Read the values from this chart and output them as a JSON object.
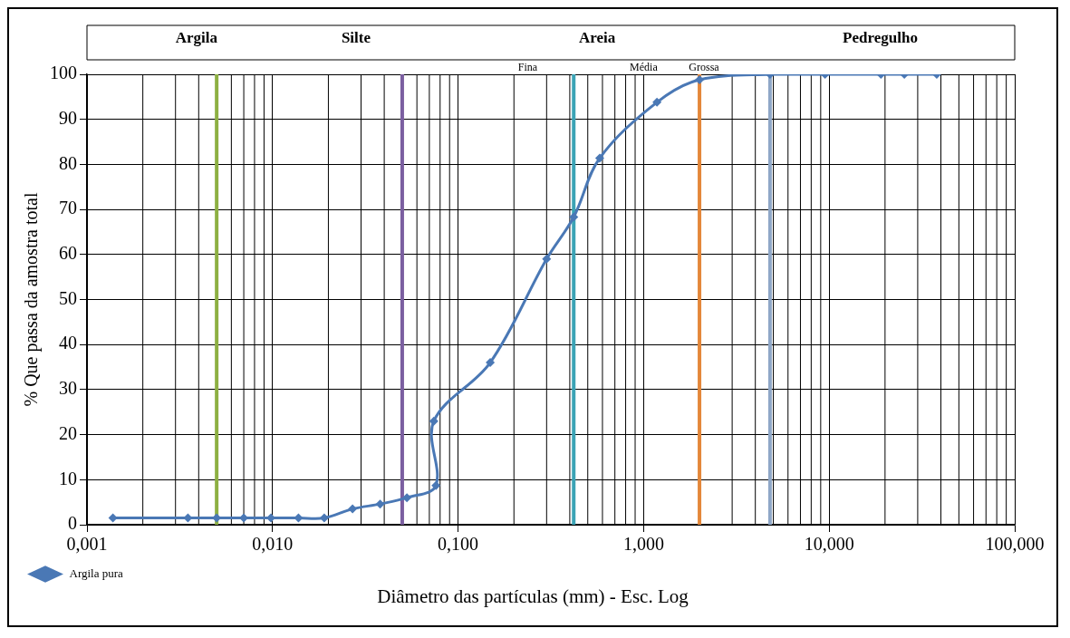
{
  "chart_data": {
    "type": "line",
    "xlabel": "Diâmetro das partículas (mm) - Esc. Log",
    "ylabel": "% Que passa da amostra total",
    "annotations": [
      "Argila",
      "Silte",
      "Areia",
      "Pedregulho",
      "Fina",
      "Média",
      "Grossa"
    ],
    "series": [
      {
        "name": "Argila pura",
        "color": "#4a78b5",
        "x": [
          0.00138,
          0.0035,
          0.005,
          0.007,
          0.0098,
          0.0138,
          0.019,
          0.027,
          0.038,
          0.053,
          0.076,
          0.074,
          0.149,
          0.3,
          0.42,
          0.58,
          1.18,
          2.0,
          4.8,
          9.5,
          19,
          25.4,
          38
        ],
        "values": [
          1.5,
          1.5,
          1.5,
          1.5,
          1.5,
          1.5,
          1.5,
          3.5,
          4.6,
          6.0,
          8.7,
          23,
          36,
          59,
          68.3,
          81.4,
          93.8,
          98.8,
          100,
          100,
          100,
          100,
          100
        ]
      }
    ],
    "ref_lines": [
      {
        "axis": "x",
        "value": 0.005,
        "color": "#8db043"
      },
      {
        "axis": "x",
        "value": 0.05,
        "color": "#7b5fa0"
      },
      {
        "axis": "x",
        "value": 0.42,
        "color": "#3ba3b5"
      },
      {
        "axis": "x",
        "value": 2.0,
        "color": "#e4873a"
      },
      {
        "axis": "x",
        "value": 4.8,
        "color": "#8fa7c7"
      }
    ],
    "log": "x",
    "xlim": [
      0.001,
      100
    ],
    "xticks": [
      {
        "value": 0.001,
        "label": "0,001"
      },
      {
        "value": 0.01,
        "label": "0,010"
      },
      {
        "value": 0.1,
        "label": "0,100"
      },
      {
        "value": 1,
        "label": "1,000"
      },
      {
        "value": 10,
        "label": "10,000"
      },
      {
        "value": 100,
        "label": "100,000"
      }
    ],
    "ylim": [
      0,
      100
    ],
    "yticks": [
      0,
      10,
      20,
      30,
      40,
      50,
      60,
      70,
      80,
      90,
      100
    ],
    "grid": true,
    "legend": "bottom left",
    "marker": "diamond",
    "line_style": "solid"
  }
}
